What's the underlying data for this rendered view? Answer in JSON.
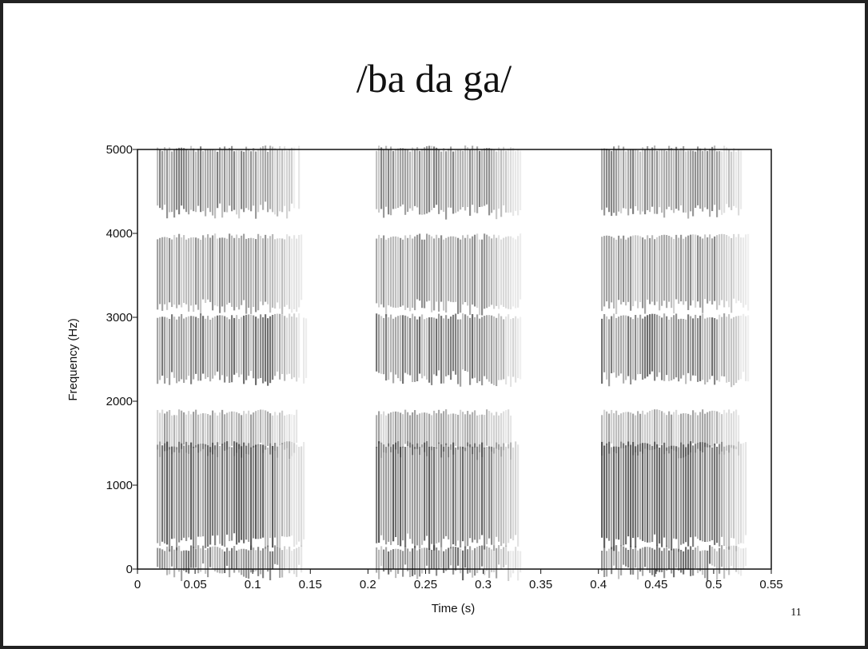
{
  "chart_data": {
    "type": "spectrogram",
    "title": "/ba da ga/",
    "x_label": "Time (s)",
    "y_label": "Frequency (Hz)",
    "xlim": [
      0,
      0.55
    ],
    "xticks": [
      0,
      0.05,
      0.1,
      0.15,
      0.2,
      0.25,
      0.3,
      0.35,
      0.4,
      0.45,
      0.5,
      0.55
    ],
    "ylim": [
      0,
      5000
    ],
    "yticks": [
      0,
      1000,
      2000,
      3000,
      4000,
      5000
    ],
    "color": "#3a3a3a"
  },
  "page_number": "11"
}
